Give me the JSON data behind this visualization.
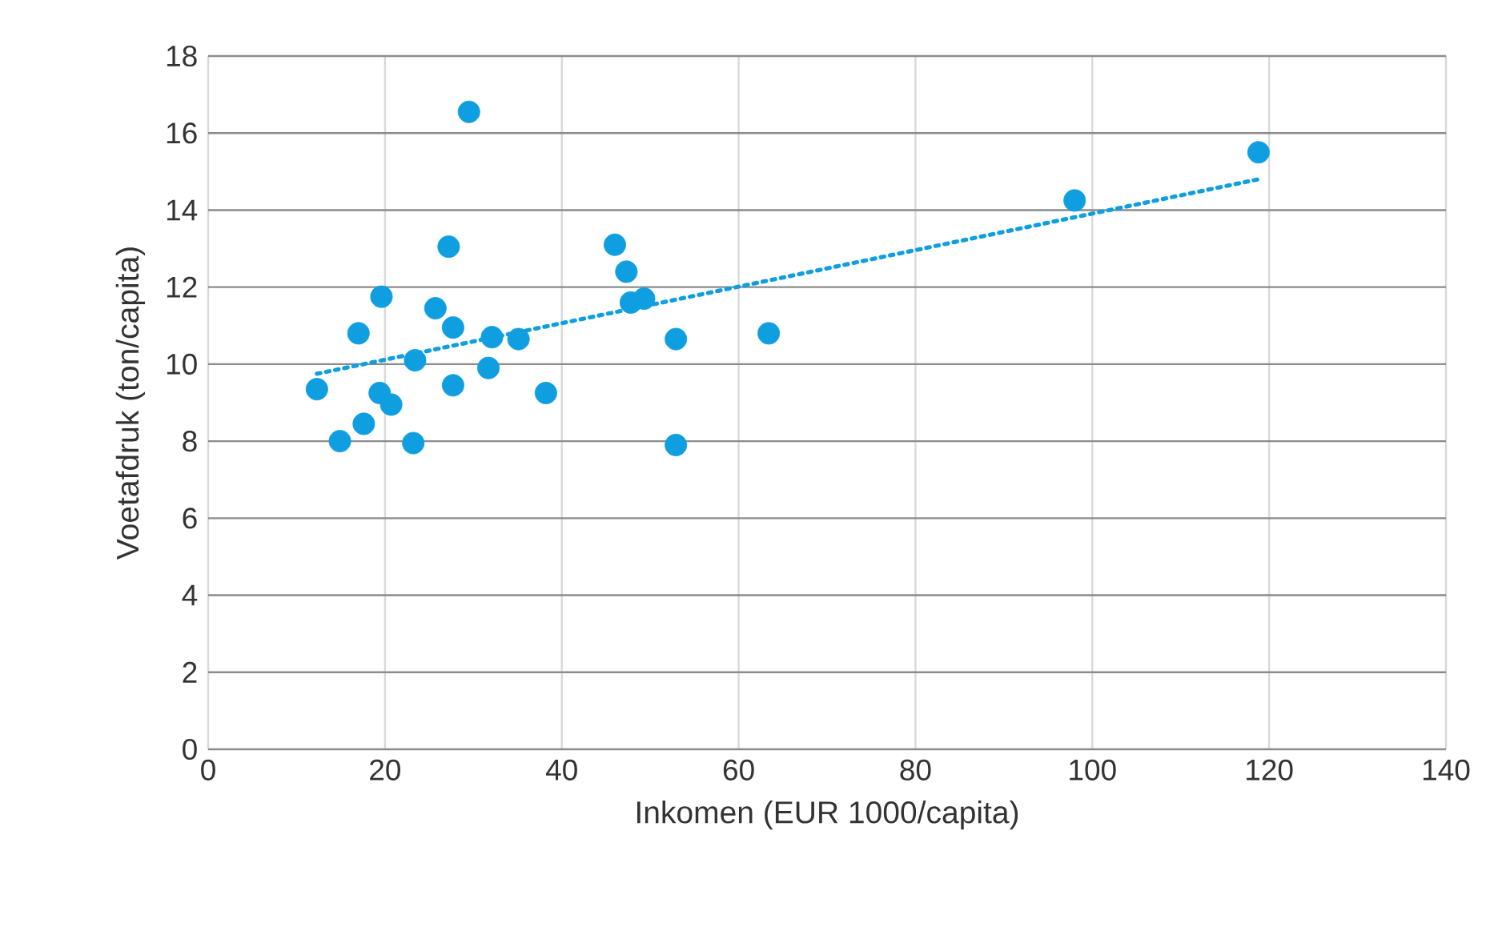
{
  "chart_data": {
    "type": "scatter",
    "xlabel": "Inkomen (EUR 1000/capita)",
    "ylabel": "Voetafdruk (ton/capita)",
    "xlim": [
      0,
      140
    ],
    "xticks": [
      0,
      20,
      40,
      60,
      80,
      100,
      120,
      140
    ],
    "ylim": [
      0,
      18
    ],
    "yticks": [
      0,
      2,
      4,
      6,
      8,
      10,
      12,
      14,
      16,
      18
    ],
    "grid": true,
    "marker": "circle",
    "series": [
      {
        "color": "#0f9ee0",
        "x": [
          12.3,
          14.9,
          17.0,
          17.6,
          19.6,
          19.4,
          20.7,
          23.4,
          23.2,
          25.7,
          27.7,
          27.2,
          27.7,
          29.5,
          31.7,
          32.1,
          35.1,
          38.2,
          46.0,
          47.3,
          47.8,
          49.3,
          52.9,
          52.9,
          63.4,
          98.0,
          118.8
        ],
        "values": [
          9.35,
          8.0,
          10.8,
          8.45,
          11.75,
          9.25,
          8.95,
          10.1,
          7.95,
          11.45,
          10.95,
          13.05,
          9.45,
          16.55,
          9.9,
          10.7,
          10.65,
          9.25,
          13.1,
          12.4,
          11.6,
          11.7,
          10.65,
          7.9,
          10.8,
          14.25,
          15.5
        ]
      },
      {
        "type": "line",
        "color": "#0f9ee0",
        "line_style": "dotted",
        "marker": "none",
        "x": [
          12.3,
          118.8
        ],
        "values": [
          9.75,
          14.8
        ]
      }
    ]
  }
}
